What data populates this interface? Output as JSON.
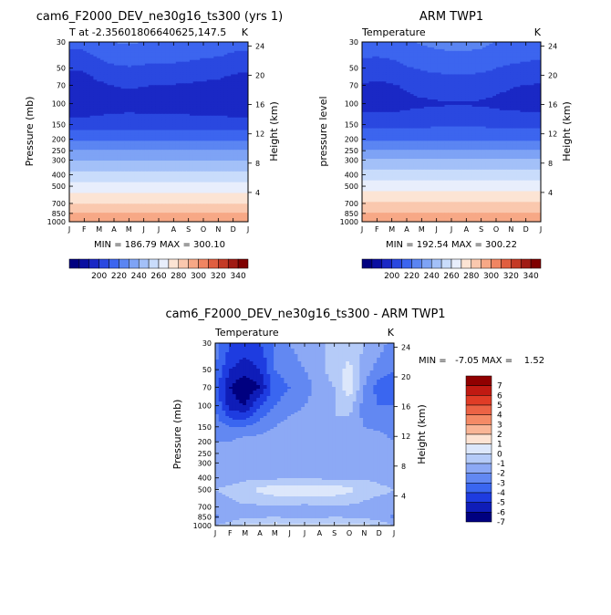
{
  "chart_data": [
    {
      "type": "heatmap",
      "title": "cam6_F2000_DEV_ne30g16_ts300 (yrs 1)",
      "subtitle_left": "T at -2.35601806640625,147.5",
      "subtitle_right": "K",
      "xlabel": "",
      "ylabel": "Pressure (mb)",
      "ylabel_right": "Height (km)",
      "x_ticks": [
        "J",
        "F",
        "M",
        "A",
        "M",
        "J",
        "J",
        "A",
        "S",
        "O",
        "N",
        "D",
        "J"
      ],
      "y_ticks": [
        30,
        50,
        70,
        100,
        150,
        200,
        250,
        300,
        400,
        500,
        700,
        850,
        1000
      ],
      "height_ticks": [
        24,
        20,
        16,
        12,
        8,
        4
      ],
      "stats": "MIN = 186.79 MAX = 300.10",
      "min": 186.79,
      "max": 300.1,
      "colorbar_labels": [
        "200",
        "220",
        "240",
        "260",
        "280",
        "300",
        "320",
        "340"
      ],
      "profile": {
        "pressure": [
          30,
          50,
          70,
          100,
          150,
          200,
          250,
          300,
          400,
          500,
          700,
          850,
          1000
        ],
        "temperature": [
          213,
          201,
          195,
          192,
          205,
          218,
          230,
          240,
          254,
          265,
          280,
          290,
          299
        ]
      },
      "seasonal_anomaly_upper": [
        0,
        0,
        4,
        7,
        8,
        7,
        6,
        6,
        5,
        4,
        3,
        1,
        0
      ]
    },
    {
      "type": "heatmap",
      "title": "ARM TWP1",
      "subtitle_left": "Temperature",
      "subtitle_right": "K",
      "xlabel": "",
      "ylabel": "pressure level",
      "ylabel_right": "Height (km)",
      "x_ticks": [
        "J",
        "F",
        "M",
        "A",
        "M",
        "J",
        "J",
        "A",
        "S",
        "O",
        "N",
        "D",
        "J"
      ],
      "y_ticks": [
        30,
        50,
        70,
        100,
        150,
        200,
        250,
        300,
        400,
        500,
        700,
        850,
        1000
      ],
      "height_ticks": [
        24,
        20,
        16,
        12,
        8,
        4
      ],
      "stats": "MIN = 192.54 MAX = 300.22",
      "min": 192.54,
      "max": 300.22,
      "colorbar_labels": [
        "200",
        "220",
        "240",
        "260",
        "280",
        "300",
        "320",
        "340"
      ],
      "profile": {
        "pressure": [
          30,
          50,
          70,
          100,
          150,
          200,
          250,
          300,
          400,
          500,
          700,
          850,
          1000
        ],
        "temperature": [
          216,
          206,
          199,
          196,
          207,
          219,
          231,
          241,
          255,
          266,
          281,
          291,
          299.5
        ]
      },
      "seasonal_anomaly_upper": [
        0,
        -1,
        0,
        3,
        5,
        6,
        7,
        7,
        6,
        4,
        2,
        1,
        0
      ]
    },
    {
      "type": "heatmap",
      "title": "cam6_F2000_DEV_ne30g16_ts300 - ARM TWP1",
      "subtitle_left": "Temperature",
      "subtitle_right": "K",
      "xlabel": "",
      "ylabel": "Pressure (mb)",
      "ylabel_right": "Height (km)",
      "x_ticks": [
        "J",
        "F",
        "M",
        "A",
        "M",
        "J",
        "J",
        "A",
        "S",
        "O",
        "N",
        "D",
        "J"
      ],
      "y_ticks": [
        30,
        50,
        70,
        100,
        150,
        200,
        250,
        300,
        400,
        500,
        700,
        850,
        1000
      ],
      "height_ticks": [
        24,
        20,
        16,
        12,
        8,
        4
      ],
      "stats": "MIN =   -7.05 MAX =    1.52",
      "min": -7.05,
      "max": 1.52,
      "colorbar_labels": [
        "7",
        "6",
        "5",
        "4",
        "3",
        "2",
        "1",
        "0",
        "-1",
        "-2",
        "-3",
        "-4",
        "-5",
        "-6",
        "-7"
      ],
      "difference_rows": {
        "pressure": [
          30,
          50,
          70,
          100,
          150,
          200,
          300,
          400,
          500,
          700,
          850,
          1000
        ],
        "months": [
          "J",
          "F",
          "M",
          "A",
          "M",
          "J",
          "J",
          "A",
          "S",
          "O",
          "N",
          "D",
          "J"
        ],
        "values": [
          [
            -2.5,
            -4,
            -4.5,
            -4,
            -3,
            -2,
            -1.5,
            -1.2,
            -0.6,
            -0.4,
            -1,
            -1.5,
            -2.5
          ],
          [
            -3,
            -5,
            -5.5,
            -5,
            -3,
            -2.5,
            -2,
            -1.3,
            -0.5,
            0.3,
            -1.5,
            -2.5,
            -3
          ],
          [
            -3.5,
            -6,
            -7,
            -6,
            -3.5,
            -3,
            -2.5,
            -1.5,
            -1,
            0.8,
            -2,
            -3.5,
            -3.5
          ],
          [
            -3,
            -5.5,
            -6,
            -4,
            -3,
            -2.5,
            -2,
            -1.5,
            -1,
            -0.5,
            -2.5,
            -3,
            -3
          ],
          [
            -2.5,
            -3,
            -3,
            -2.5,
            -2,
            -1.5,
            -1.3,
            -1,
            -1,
            -1.5,
            -2,
            -2.2,
            -2.5
          ],
          [
            -2,
            -2,
            -1.5,
            -1.5,
            -1.4,
            -1.5,
            -1.6,
            -1.4,
            -1.5,
            -1.6,
            -1.4,
            -1.5,
            -2
          ],
          [
            -1.5,
            -1.5,
            -1.4,
            -1.3,
            -1.4,
            -1.4,
            -1.5,
            -1.4,
            -1.3,
            -1.3,
            -1.4,
            -1.5,
            -1.5
          ],
          [
            -1.4,
            -1.3,
            -1.2,
            -1.3,
            -1.2,
            -1.1,
            -1,
            -1.2,
            -1.3,
            -1.2,
            -1.1,
            -1.2,
            -1.4
          ],
          [
            -1,
            -0.8,
            -0.5,
            0.3,
            0.6,
            0.8,
            0.7,
            0.9,
            0.6,
            0.3,
            -0.5,
            -0.8,
            -1
          ],
          [
            -1.3,
            -1.2,
            -1.1,
            -1.2,
            -1.1,
            -1.2,
            -1.3,
            -1.2,
            -1.1,
            -1.2,
            -1.3,
            -1.4,
            -1.3
          ],
          [
            -2.3,
            -1.5,
            -1.2,
            -1.1,
            -1,
            -1.1,
            -1.2,
            -1.1,
            -1,
            -1.1,
            -1.2,
            -1.5,
            -2.3
          ],
          [
            -1,
            -0.6,
            0.3,
            0.4,
            0.5,
            0.3,
            0.2,
            0.3,
            0.4,
            0.5,
            0.3,
            -0.2,
            -1
          ]
        ]
      }
    }
  ],
  "temperature_palette": [
    "#00007f",
    "#0a0fa0",
    "#1a28c5",
    "#2a48e0",
    "#3c65ef",
    "#5b85f2",
    "#7ea3f5",
    "#a3c0f8",
    "#c9dcfb",
    "#e8eefc",
    "#fce4d4",
    "#fac8ae",
    "#f7a886",
    "#f08562",
    "#e05e40",
    "#c43a26",
    "#a01b14",
    "#7f0000"
  ],
  "difference_palette": [
    "#000080",
    "#0f1db8",
    "#1e3ce0",
    "#3a66f0",
    "#6288f2",
    "#8ca9f5",
    "#b5cbf8",
    "#dce7fb",
    "#fde3d3",
    "#f9b596",
    "#f48a66",
    "#ec6345",
    "#e03c26",
    "#c01a12",
    "#900000"
  ]
}
